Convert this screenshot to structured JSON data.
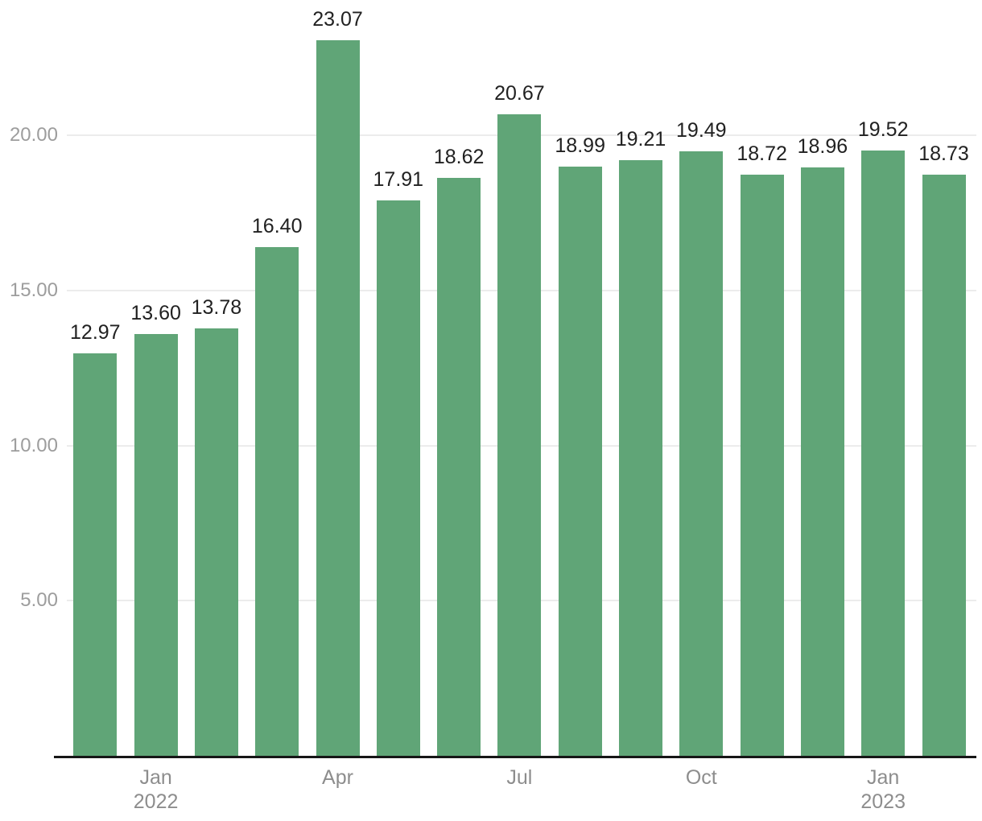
{
  "chart_data": {
    "type": "bar",
    "title": "",
    "xlabel": "",
    "ylabel": "",
    "legend": "none",
    "grid": true,
    "ylim": [
      0,
      24.35
    ],
    "values": [
      12.97,
      13.6,
      13.78,
      16.4,
      23.07,
      17.91,
      18.62,
      20.67,
      18.99,
      19.21,
      19.49,
      18.72,
      18.96,
      19.52,
      18.73
    ],
    "value_labels": [
      "12.97",
      "13.60",
      "13.78",
      "16.40",
      "23.07",
      "17.91",
      "18.62",
      "20.67",
      "18.99",
      "19.21",
      "19.49",
      "18.72",
      "18.96",
      "19.52",
      "18.73"
    ],
    "x_ticks": [
      {
        "bar_index": 1,
        "line1": "Jan",
        "line2": "2022"
      },
      {
        "bar_index": 4,
        "line1": "Apr",
        "line2": ""
      },
      {
        "bar_index": 7,
        "line1": "Jul",
        "line2": ""
      },
      {
        "bar_index": 10,
        "line1": "Oct",
        "line2": ""
      },
      {
        "bar_index": 13,
        "line1": "Jan",
        "line2": "2023"
      }
    ],
    "y_ticks": [
      {
        "value": 5,
        "label": "5.00"
      },
      {
        "value": 10,
        "label": "10.00"
      },
      {
        "value": 15,
        "label": "15.00"
      },
      {
        "value": 20,
        "label": "20.00"
      }
    ],
    "colors": {
      "bar": "#60a577",
      "grid_line": "#ececec",
      "axis_line": "#161616",
      "y_tick_label": "#9d9d9d",
      "x_tick_label": "#8d8d8d",
      "value_label": "#212121",
      "background": "#ffffff"
    }
  }
}
